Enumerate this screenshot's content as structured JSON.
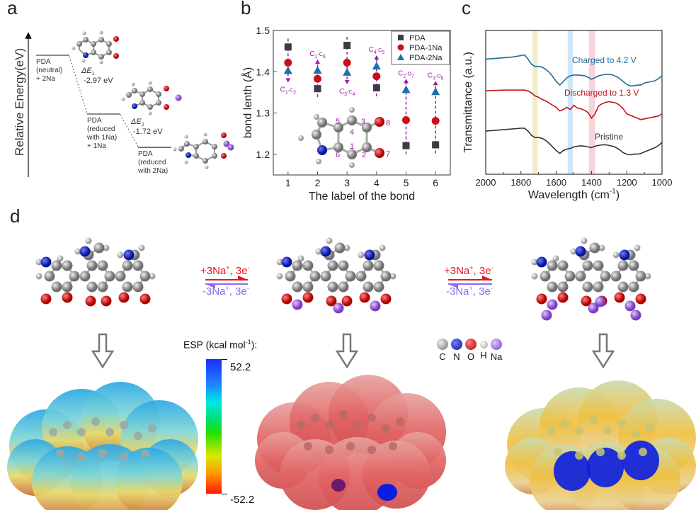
{
  "panel_labels": {
    "a": "a",
    "b": "b",
    "c": "c",
    "d": "d"
  },
  "panel_a": {
    "ylabel": "Relative Energy(eV)",
    "levels": [
      {
        "label_lines": [
          "PDA",
          "(neutral)",
          "+ 2Na"
        ]
      },
      {
        "label_lines": [
          "PDA",
          "(reduced",
          "with 1Na)",
          "+ 1Na"
        ]
      },
      {
        "label_lines": [
          "PDA",
          "(reduced",
          "with 2Na)"
        ]
      }
    ],
    "steps": [
      {
        "symbol": "ΔE",
        "sub": "1",
        "value": "-2.97 eV"
      },
      {
        "symbol": "ΔE",
        "sub": "2",
        "value": "-1.72 eV"
      }
    ]
  },
  "chart_data": [
    {
      "panel": "b",
      "type": "scatter",
      "title": "",
      "xlabel": "The label of the bond",
      "ylabel": "bond lenth (Å)",
      "xlim": [
        0.5,
        6.5
      ],
      "ylim": [
        1.15,
        1.5
      ],
      "xticks": [
        "1",
        "2",
        "3",
        "4",
        "5",
        "6"
      ],
      "yticks": [
        "1.2",
        "1.3",
        "1.4",
        "1.5"
      ],
      "x": [
        1,
        2,
        3,
        4,
        5,
        6
      ],
      "series": [
        {
          "name": "PDA",
          "marker": "square",
          "color": "#3d3a40",
          "values": [
            1.46,
            1.359,
            1.464,
            1.361,
            1.221,
            1.223
          ]
        },
        {
          "name": "PDA-1Na",
          "marker": "circle",
          "color": "#c8101a",
          "values": [
            1.422,
            1.383,
            1.422,
            1.389,
            1.283,
            1.281
          ]
        },
        {
          "name": "PDA-2Na",
          "marker": "triangle",
          "color": "#1f6fa8",
          "values": [
            1.403,
            1.404,
            1.399,
            1.414,
            1.357,
            1.352
          ]
        }
      ],
      "bond_annotations": [
        {
          "x": 1,
          "atoms": [
            "C",
            "1",
            "C",
            "2"
          ],
          "position": "below",
          "arrow": "down"
        },
        {
          "x": 2,
          "atoms": [
            "C",
            "1",
            "C",
            "6"
          ],
          "position": "above",
          "arrow": "up"
        },
        {
          "x": 3,
          "atoms": [
            "C",
            "3",
            "C",
            "4"
          ],
          "position": "below",
          "arrow": "down"
        },
        {
          "x": 4,
          "atoms": [
            "C",
            "4",
            "C",
            "5"
          ],
          "position": "above",
          "arrow": "up"
        },
        {
          "x": 5,
          "atoms": [
            "C",
            "2",
            "O",
            "7"
          ],
          "position": "above",
          "arrow": "up"
        },
        {
          "x": 6,
          "atoms": [
            "C",
            "3",
            "O",
            "8"
          ],
          "position": "above",
          "arrow": "up"
        }
      ],
      "inset_atom_numbers": [
        "1",
        "2",
        "3",
        "4",
        "5",
        "6",
        "7",
        "8"
      ],
      "legend": "top-right",
      "annotation_color": "#9a1fa8"
    },
    {
      "panel": "c",
      "type": "line",
      "title": "",
      "xlabel": "Wavelength (cm",
      "xlabel_sup": "-1",
      "xlabel_tail": ")",
      "ylabel": "Transmittance (a.u.)",
      "xlim": [
        2000,
        1000
      ],
      "ylim": [
        0,
        1
      ],
      "xticks": [
        "2000",
        "1800",
        "1600",
        "1400",
        "1200",
        "1000"
      ],
      "highlight_bands": [
        {
          "from": 1735,
          "to": 1705,
          "color": "#f2edc8"
        },
        {
          "from": 1535,
          "to": 1505,
          "color": "#cfe6f8"
        },
        {
          "from": 1415,
          "to": 1380,
          "color": "#f8d3da"
        }
      ],
      "x": [
        2000,
        1950,
        1900,
        1850,
        1800,
        1780,
        1760,
        1740,
        1720,
        1700,
        1680,
        1660,
        1640,
        1620,
        1600,
        1580,
        1560,
        1540,
        1520,
        1500,
        1480,
        1460,
        1440,
        1420,
        1400,
        1380,
        1360,
        1340,
        1320,
        1300,
        1280,
        1260,
        1240,
        1220,
        1200,
        1180,
        1160,
        1140,
        1120,
        1100,
        1080,
        1060,
        1040,
        1020,
        1000
      ],
      "series": [
        {
          "name": "Charged to 4.2 V",
          "color": "#1f6b9a",
          "values": [
            0.8,
            0.805,
            0.81,
            0.815,
            0.825,
            0.83,
            0.8,
            0.765,
            0.75,
            0.75,
            0.745,
            0.73,
            0.71,
            0.68,
            0.645,
            0.62,
            0.645,
            0.67,
            0.685,
            0.69,
            0.69,
            0.688,
            0.685,
            0.675,
            0.66,
            0.672,
            0.685,
            0.69,
            0.695,
            0.695,
            0.69,
            0.68,
            0.665,
            0.645,
            0.625,
            0.615,
            0.615,
            0.62,
            0.62,
            0.635,
            0.64,
            0.645,
            0.65,
            0.665,
            0.685
          ]
        },
        {
          "name": "Discharged to 1.3 V",
          "color": "#c0161c",
          "values": [
            0.58,
            0.583,
            0.585,
            0.585,
            0.585,
            0.585,
            0.58,
            0.565,
            0.545,
            0.535,
            0.52,
            0.51,
            0.495,
            0.48,
            0.465,
            0.44,
            0.45,
            0.465,
            0.45,
            0.48,
            0.46,
            0.455,
            0.445,
            0.43,
            0.39,
            0.42,
            0.475,
            0.49,
            0.5,
            0.505,
            0.5,
            0.495,
            0.48,
            0.455,
            0.42,
            0.41,
            0.4,
            0.39,
            0.38,
            0.385,
            0.39,
            0.395,
            0.4,
            0.405,
            0.42
          ]
        },
        {
          "name": "Pristine",
          "color": "#333333",
          "values": [
            0.3,
            0.305,
            0.31,
            0.315,
            0.32,
            0.32,
            0.3,
            0.27,
            0.255,
            0.255,
            0.25,
            0.235,
            0.215,
            0.19,
            0.165,
            0.145,
            0.165,
            0.175,
            0.18,
            0.19,
            0.195,
            0.198,
            0.195,
            0.19,
            0.185,
            0.195,
            0.2,
            0.205,
            0.205,
            0.2,
            0.195,
            0.185,
            0.17,
            0.15,
            0.14,
            0.135,
            0.14,
            0.14,
            0.145,
            0.155,
            0.165,
            0.175,
            0.185,
            0.2,
            0.22
          ]
        }
      ],
      "legend": "inline-labels"
    }
  ],
  "panel_d": {
    "forward_reaction": {
      "main": "+3Na",
      "sup": "+",
      "tail": ", 3e",
      "sup2": "-"
    },
    "reverse_reaction": {
      "main": "-3Na",
      "sup": "+",
      "tail": ", 3e",
      "sup2": "-"
    },
    "esp_title": "ESP (kcal mol",
    "esp_title_sup": "-1",
    "esp_title_tail": "):",
    "esp_max": "52.2",
    "esp_min": "-52.2",
    "atom_legend": [
      {
        "symbol": "C",
        "color": "#8c8c8c"
      },
      {
        "symbol": "N",
        "color": "#1a2bd6"
      },
      {
        "symbol": "O",
        "color": "#e01010"
      },
      {
        "symbol": "H",
        "color": "#d8d8d8"
      },
      {
        "symbol": "Na",
        "color": "#a36ae0"
      }
    ],
    "colors": {
      "forward": "#e8161e",
      "reverse": "#8c6cf0"
    }
  }
}
